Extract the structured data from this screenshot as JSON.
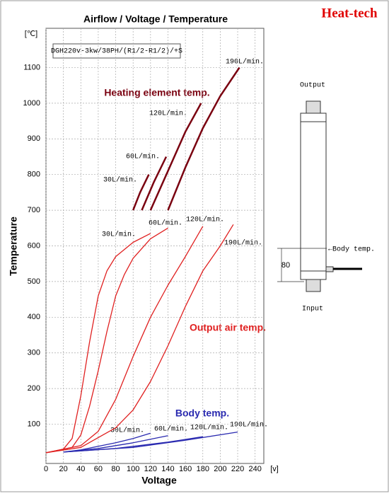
{
  "chart_data": {
    "type": "line",
    "title": "Airflow / Voltage / Temperature",
    "brand": "Heat-tech",
    "xlabel": "Voltage",
    "ylabel": "Temperature",
    "yunit": "[℃]",
    "xunit": "[v]",
    "model": "DGH220v-3kw/38PH/(R1/2-R1/2)/+S",
    "xlim": [
      0,
      250
    ],
    "ylim": [
      -10,
      1210
    ],
    "xticks": [
      0,
      20,
      40,
      60,
      80,
      100,
      120,
      140,
      160,
      180,
      200,
      220,
      240
    ],
    "yticks": [
      100,
      200,
      300,
      400,
      500,
      600,
      700,
      800,
      900,
      1000,
      1100
    ],
    "grid": true,
    "annotations": [
      "Heating element temp.",
      "Output air temp.",
      "Body temp.",
      "30L/min.",
      "60L/min.",
      "120L/min.",
      "190L/min."
    ],
    "series": [
      {
        "name": "Heating 30L/min.",
        "color": "#7a0010",
        "x": [
          100,
          108,
          118
        ],
        "values": [
          700,
          750,
          800
        ]
      },
      {
        "name": "Heating 60L/min.",
        "color": "#7a0010",
        "x": [
          110,
          124,
          138
        ],
        "values": [
          700,
          780,
          850
        ]
      },
      {
        "name": "Heating 120L/min.",
        "color": "#7a0010",
        "x": [
          120,
          140,
          160,
          178
        ],
        "values": [
          700,
          810,
          920,
          1000
        ]
      },
      {
        "name": "Heating 190L/min.",
        "color": "#7a0010",
        "x": [
          140,
          160,
          180,
          200,
          222
        ],
        "values": [
          700,
          820,
          930,
          1020,
          1100
        ]
      },
      {
        "name": "Output 30L/min.",
        "color": "#e02020",
        "x": [
          0,
          20,
          30,
          40,
          50,
          60,
          70,
          80,
          100,
          120
        ],
        "values": [
          20,
          30,
          60,
          180,
          330,
          460,
          530,
          570,
          610,
          635
        ]
      },
      {
        "name": "Output 60L/min.",
        "color": "#e02020",
        "x": [
          0,
          30,
          40,
          50,
          60,
          70,
          80,
          90,
          100,
          120,
          140
        ],
        "values": [
          20,
          35,
          70,
          150,
          250,
          360,
          460,
          520,
          565,
          620,
          650
        ]
      },
      {
        "name": "Output 120L/min.",
        "color": "#e02020",
        "x": [
          0,
          40,
          60,
          80,
          100,
          120,
          140,
          160,
          180
        ],
        "values": [
          20,
          40,
          80,
          170,
          290,
          400,
          490,
          570,
          655
        ]
      },
      {
        "name": "Output 190L/min.",
        "color": "#e02020",
        "x": [
          0,
          40,
          80,
          100,
          120,
          140,
          160,
          180,
          200,
          215
        ],
        "values": [
          20,
          35,
          90,
          140,
          220,
          320,
          430,
          530,
          600,
          660
        ]
      },
      {
        "name": "Body 30L/min.",
        "color": "#2a2ab0",
        "x": [
          20,
          40,
          60,
          80,
          100,
          120
        ],
        "values": [
          22,
          28,
          38,
          48,
          60,
          75
        ]
      },
      {
        "name": "Body 60L/min.",
        "color": "#2a2ab0",
        "x": [
          20,
          60,
          100,
          140
        ],
        "values": [
          22,
          32,
          48,
          68
        ]
      },
      {
        "name": "Body 120L/min.",
        "color": "#2a2ab0",
        "x": [
          20,
          80,
          140,
          180
        ],
        "values": [
          22,
          32,
          50,
          65
        ]
      },
      {
        "name": "Body 190L/min.",
        "color": "#2a2ab0",
        "x": [
          20,
          100,
          160,
          220
        ],
        "values": [
          22,
          35,
          55,
          78
        ]
      }
    ]
  },
  "diagram": {
    "top": "Output",
    "bottom": "Input",
    "body": "←Body temp.",
    "dimension": "80"
  }
}
